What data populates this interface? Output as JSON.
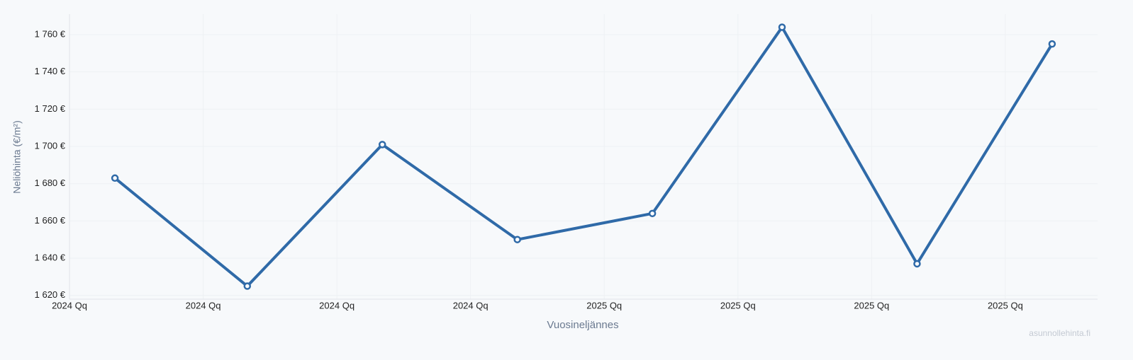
{
  "chart_data": {
    "type": "line",
    "x_label": "Vuosineljännes",
    "y_label": "Neliöhinta (€/m²)",
    "watermark": "asunnollehinta.fi",
    "x": [
      0.34,
      1.33,
      2.34,
      3.35,
      4.36,
      5.33,
      6.34,
      7.35
    ],
    "xlim": [
      0,
      7.69
    ],
    "xticks": [
      {
        "value": 0,
        "label": "2024 Qq"
      },
      {
        "value": 1,
        "label": "2024 Qq"
      },
      {
        "value": 2,
        "label": "2024 Qq"
      },
      {
        "value": 3,
        "label": "2024 Qq"
      },
      {
        "value": 4,
        "label": "2025 Qq"
      },
      {
        "value": 5,
        "label": "2025 Qq"
      },
      {
        "value": 6,
        "label": "2025 Qq"
      },
      {
        "value": 7,
        "label": "2025 Qq"
      }
    ],
    "series": [
      {
        "color": "#2f6aa8",
        "values": [
          1683,
          1625,
          1701,
          1650,
          1664,
          1764,
          1637,
          1755
        ]
      }
    ],
    "ylim": [
      1618,
      1771
    ],
    "yticks": [
      {
        "value": 1620,
        "label": "1 620 €"
      },
      {
        "value": 1640,
        "label": "1 640 €"
      },
      {
        "value": 1660,
        "label": "1 660 €"
      },
      {
        "value": 1680,
        "label": "1 680 €"
      },
      {
        "value": 1700,
        "label": "1 700 €"
      },
      {
        "value": 1720,
        "label": "1 720 €"
      },
      {
        "value": 1740,
        "label": "1 740 €"
      },
      {
        "value": 1760,
        "label": "1 760 €"
      }
    ],
    "grid": true
  }
}
